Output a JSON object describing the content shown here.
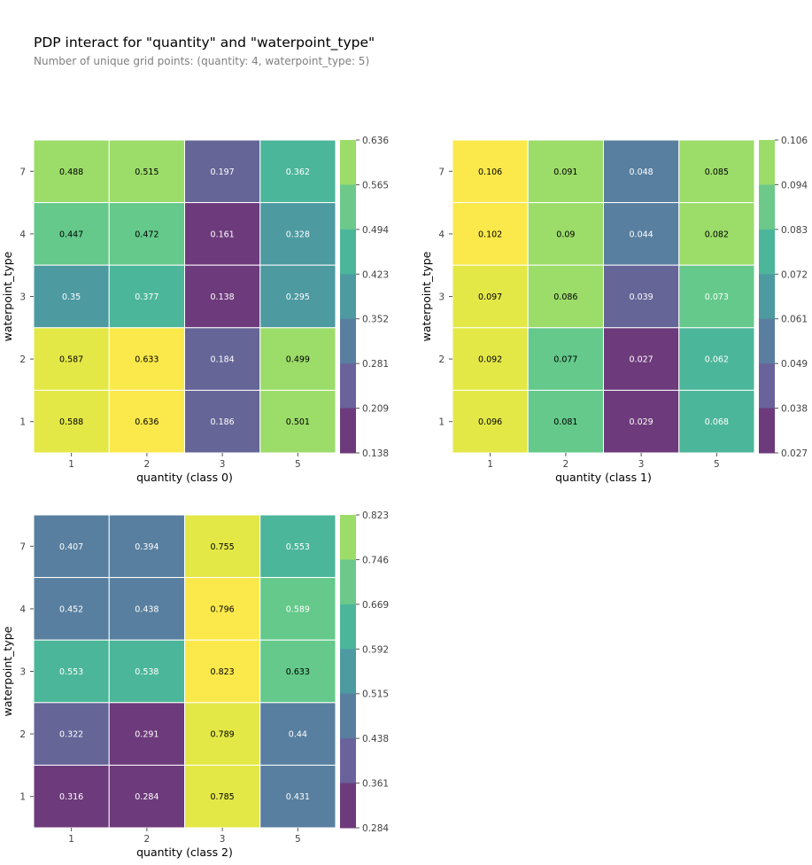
{
  "title": "PDP interact for \"quantity\" and \"waterpoint_type\"",
  "subtitle": "Number of unique grid points: (quantity: 4, waterpoint_type: 5)",
  "chart_data": [
    {
      "type": "heatmap",
      "xlabel": "quantity (class 0)",
      "ylabel": "waterpoint_type",
      "x_categories": [
        "1",
        "2",
        "3",
        "5"
      ],
      "y_categories": [
        "7",
        "4",
        "3",
        "2",
        "1"
      ],
      "values": [
        [
          0.488,
          0.515,
          0.197,
          0.362
        ],
        [
          0.447,
          0.472,
          0.161,
          0.328
        ],
        [
          0.35,
          0.377,
          0.138,
          0.295
        ],
        [
          0.587,
          0.633,
          0.184,
          0.499
        ],
        [
          0.588,
          0.636,
          0.186,
          0.501
        ]
      ],
      "value_labels": [
        [
          "0.488",
          "0.515",
          "0.197",
          "0.362"
        ],
        [
          "0.447",
          "0.472",
          "0.161",
          "0.328"
        ],
        [
          "0.35",
          "0.377",
          "0.138",
          "0.295"
        ],
        [
          "0.587",
          "0.633",
          "0.184",
          "0.499"
        ],
        [
          "0.588",
          "0.636",
          "0.186",
          "0.501"
        ]
      ],
      "colorbar_ticks": [
        "0.636",
        "0.565",
        "0.494",
        "0.423",
        "0.352",
        "0.281",
        "0.209",
        "0.138"
      ],
      "vmin": 0.138,
      "vmax": 0.636,
      "colormap": "viridis"
    },
    {
      "type": "heatmap",
      "xlabel": "quantity (class 1)",
      "ylabel": "waterpoint_type",
      "x_categories": [
        "1",
        "2",
        "3",
        "5"
      ],
      "y_categories": [
        "7",
        "4",
        "3",
        "2",
        "1"
      ],
      "values": [
        [
          0.106,
          0.091,
          0.048,
          0.085
        ],
        [
          0.102,
          0.09,
          0.044,
          0.082
        ],
        [
          0.097,
          0.086,
          0.039,
          0.073
        ],
        [
          0.092,
          0.077,
          0.027,
          0.062
        ],
        [
          0.096,
          0.081,
          0.029,
          0.068
        ]
      ],
      "value_labels": [
        [
          "0.106",
          "0.091",
          "0.048",
          "0.085"
        ],
        [
          "0.102",
          "0.09",
          "0.044",
          "0.082"
        ],
        [
          "0.097",
          "0.086",
          "0.039",
          "0.073"
        ],
        [
          "0.092",
          "0.077",
          "0.027",
          "0.062"
        ],
        [
          "0.096",
          "0.081",
          "0.029",
          "0.068"
        ]
      ],
      "colorbar_ticks": [
        "0.106",
        "0.094",
        "0.083",
        "0.072",
        "0.061",
        "0.049",
        "0.038",
        "0.027"
      ],
      "vmin": 0.027,
      "vmax": 0.106,
      "colormap": "viridis"
    },
    {
      "type": "heatmap",
      "xlabel": "quantity (class 2)",
      "ylabel": "waterpoint_type",
      "x_categories": [
        "1",
        "2",
        "3",
        "5"
      ],
      "y_categories": [
        "7",
        "4",
        "3",
        "2",
        "1"
      ],
      "values": [
        [
          0.407,
          0.394,
          0.755,
          0.553
        ],
        [
          0.452,
          0.438,
          0.796,
          0.589
        ],
        [
          0.553,
          0.538,
          0.823,
          0.633
        ],
        [
          0.322,
          0.291,
          0.789,
          0.44
        ],
        [
          0.316,
          0.284,
          0.785,
          0.431
        ]
      ],
      "value_labels": [
        [
          "0.407",
          "0.394",
          "0.755",
          "0.553"
        ],
        [
          "0.452",
          "0.438",
          "0.796",
          "0.589"
        ],
        [
          "0.553",
          "0.538",
          "0.823",
          "0.633"
        ],
        [
          "0.322",
          "0.291",
          "0.789",
          "0.44"
        ],
        [
          "0.316",
          "0.284",
          "0.785",
          "0.431"
        ]
      ],
      "colorbar_ticks": [
        "0.823",
        "0.746",
        "0.669",
        "0.592",
        "0.515",
        "0.438",
        "0.361",
        "0.284"
      ],
      "vmin": 0.284,
      "vmax": 0.823,
      "colormap": "viridis"
    }
  ]
}
